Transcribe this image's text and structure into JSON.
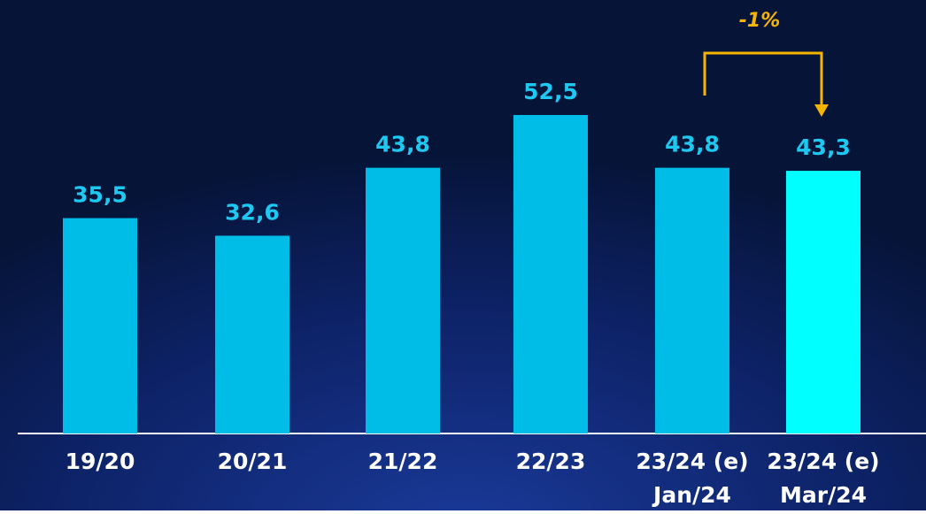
{
  "chart_data": {
    "type": "bar",
    "categories": [
      [
        "19/20"
      ],
      [
        "20/21"
      ],
      [
        "21/22"
      ],
      [
        "22/23"
      ],
      [
        "23/24 (e)",
        "Jan/24"
      ],
      [
        "23/24 (e)",
        "Mar/24"
      ]
    ],
    "values": [
      35.5,
      32.6,
      43.8,
      52.5,
      43.8,
      43.3
    ],
    "value_labels": [
      "35,5",
      "32,6",
      "43,8",
      "52,5",
      "43,8",
      "43,3"
    ],
    "colors": [
      "#00bde8",
      "#00bde8",
      "#00bde8",
      "#00bde8",
      "#00bde8",
      "#00ffff"
    ],
    "annotation": "-1%"
  }
}
